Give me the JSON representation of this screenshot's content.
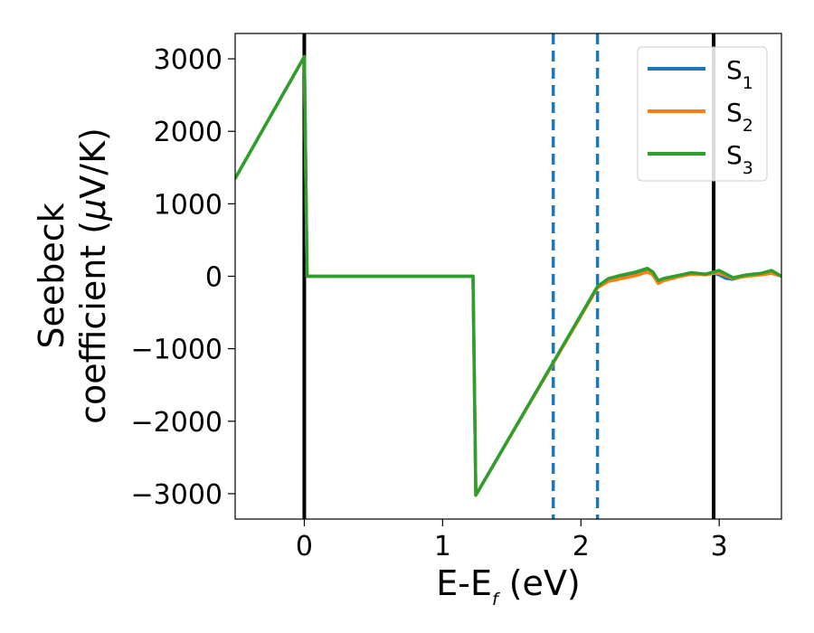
{
  "chart_data": {
    "type": "line",
    "xlabel": {
      "prefix": "E-E",
      "sub": "f",
      "suffix": " (eV)"
    },
    "ylabel": {
      "line1": "Seebeck",
      "line2": "coefficient  (",
      "mu": "μ",
      "unit": "V/K)"
    },
    "xlim": [
      -0.5,
      3.45
    ],
    "ylim": [
      -3350,
      3350
    ],
    "xticks": [
      0,
      1,
      2,
      3
    ],
    "xtick_labels": [
      "0",
      "1",
      "2",
      "3"
    ],
    "yticks": [
      3000,
      2000,
      1000,
      0,
      -1000,
      -2000,
      -3000
    ],
    "ytick_labels": [
      "3000",
      "2000",
      "1000",
      "0",
      "−1000",
      "−2000",
      "−3000"
    ],
    "grid": false,
    "legend": {
      "placement": "top-right",
      "entries": [
        {
          "base": "S",
          "sub": "1"
        },
        {
          "base": "S",
          "sub": "2"
        },
        {
          "base": "S",
          "sub": "3"
        }
      ]
    },
    "colors": {
      "S1": "#1f77b4",
      "S2": "#ff7f0e",
      "S3": "#2ca02c",
      "vline_solid": "#000000",
      "vline_dashed": "#1f77b4"
    },
    "vlines": [
      {
        "x": 0.0,
        "style": "solid"
      },
      {
        "x": 2.96,
        "style": "solid"
      },
      {
        "x": 1.8,
        "style": "dashed"
      },
      {
        "x": 2.12,
        "style": "dashed"
      }
    ],
    "series": [
      {
        "name": "S1",
        "x": [
          -0.5,
          0.0,
          0.02,
          1.22,
          1.24,
          2.12,
          2.2,
          2.3,
          2.4,
          2.48,
          2.52,
          2.56,
          2.6,
          2.7,
          2.8,
          2.9,
          2.96,
          3.0,
          3.05,
          3.1,
          3.2,
          3.3,
          3.38,
          3.45
        ],
        "y": [
          1350,
          3030,
          0,
          0,
          -3020,
          -150,
          -40,
          0,
          30,
          80,
          30,
          -90,
          -50,
          0,
          40,
          20,
          40,
          20,
          -30,
          -40,
          10,
          30,
          60,
          0
        ]
      },
      {
        "name": "S2",
        "x": [
          -0.5,
          0.0,
          0.02,
          1.22,
          1.24,
          2.12,
          2.2,
          2.3,
          2.4,
          2.48,
          2.52,
          2.56,
          2.6,
          2.7,
          2.8,
          2.9,
          2.96,
          3.0,
          3.05,
          3.1,
          3.2,
          3.3,
          3.38,
          3.45
        ],
        "y": [
          1350,
          3030,
          0,
          0,
          -3020,
          -160,
          -70,
          -30,
          10,
          60,
          20,
          -100,
          -60,
          -10,
          30,
          20,
          40,
          40,
          10,
          -30,
          0,
          20,
          40,
          0
        ]
      },
      {
        "name": "S3",
        "x": [
          -0.5,
          0.0,
          0.02,
          1.22,
          1.24,
          2.12,
          2.2,
          2.3,
          2.4,
          2.48,
          2.52,
          2.56,
          2.6,
          2.7,
          2.8,
          2.9,
          2.96,
          3.0,
          3.05,
          3.1,
          3.2,
          3.3,
          3.38,
          3.45
        ],
        "y": [
          1350,
          3030,
          0,
          0,
          -3020,
          -140,
          -30,
          20,
          60,
          110,
          60,
          -60,
          -30,
          10,
          50,
          30,
          60,
          80,
          30,
          -20,
          20,
          40,
          80,
          0
        ]
      }
    ]
  }
}
